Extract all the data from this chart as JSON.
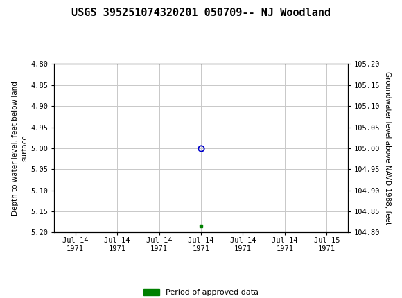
{
  "title": "USGS 395251074320201 050709-- NJ Woodland",
  "ylabel_left": "Depth to water level, feet below land\nsurface",
  "ylabel_right": "Groundwater level above NAVD 1988, feet",
  "ylim_left": [
    5.2,
    4.8
  ],
  "ylim_right": [
    104.8,
    105.2
  ],
  "yticks_left": [
    4.8,
    4.85,
    4.9,
    4.95,
    5.0,
    5.05,
    5.1,
    5.15,
    5.2
  ],
  "yticks_right": [
    104.8,
    104.85,
    104.9,
    104.95,
    105.0,
    105.05,
    105.1,
    105.15,
    105.2
  ],
  "ytick_labels_left": [
    "4.80",
    "4.85",
    "4.90",
    "4.95",
    "5.00",
    "5.05",
    "5.10",
    "5.15",
    "5.20"
  ],
  "ytick_labels_right": [
    "105.20",
    "105.15",
    "105.10",
    "105.05",
    "105.00",
    "104.95",
    "104.90",
    "104.85",
    "104.80"
  ],
  "header_color": "#1a7040",
  "grid_color": "#c8c8c8",
  "open_circle_color": "#0000cc",
  "approved_color": "#008000",
  "legend_label": "Period of approved data",
  "data_point_y": 5.0,
  "approved_y": 5.185,
  "x_start_num": 0,
  "x_end_num": 6,
  "data_point_x_num": 3,
  "approved_x_num": 3,
  "x_tick_positions": [
    0,
    1,
    2,
    3,
    4,
    5,
    6
  ],
  "x_tick_labels": [
    "Jul 14\n1971",
    "Jul 14\n1971",
    "Jul 14\n1971",
    "Jul 14\n1971",
    "Jul 14\n1971",
    "Jul 14\n1971",
    "Jul 15\n1971"
  ],
  "bg_color": "#ffffff",
  "title_fontsize": 11,
  "tick_fontsize": 7.5,
  "ylabel_fontsize": 7.5
}
